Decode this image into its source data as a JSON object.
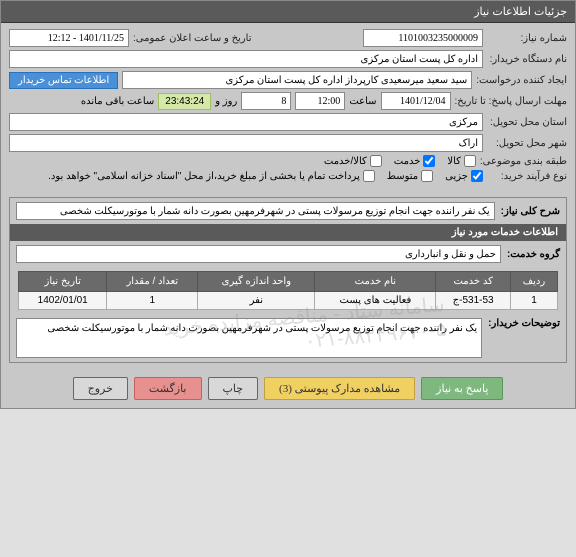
{
  "header": {
    "title": "جزئیات اطلاعات نیاز"
  },
  "form": {
    "need_number_label": "شماره نیاز:",
    "need_number": "1101003235000009",
    "announce_label": "تاریخ و ساعت اعلان عمومی:",
    "announce_value": "1401/11/25 - 12:12",
    "buyer_org_label": "نام دستگاه خریدار:",
    "buyer_org": "اداره کل پست استان مرکزی",
    "creator_label": "ایجاد کننده درخواست:",
    "creator": "سید سعید میرسعیدی کارپرداز اداره کل پست استان مرکزی",
    "contact_btn": "اطلاعات تماس خریدار",
    "deadline_label": "مهلت ارسال پاسخ: تا تاریخ:",
    "deadline_date": "1401/12/04",
    "time_label": "ساعت",
    "deadline_time": "12:00",
    "days_label": "روز و",
    "days_value": "8",
    "remaining_time": "23:43:24",
    "remaining_label": "ساعت باقی مانده",
    "delivery_province_label": "استان محل تحویل:",
    "delivery_province": "مرکزی",
    "delivery_city_label": "شهر محل تحویل:",
    "delivery_city": "اراک",
    "category_label": "طبقه بندی موضوعی:",
    "cat_goods": "کالا",
    "cat_service": "خدمت",
    "cat_goods_service": "کالا/خدمت",
    "process_label": "نوع فرآیند خرید:",
    "proc_small": "جزیی",
    "proc_medium": "متوسط",
    "proc_note": "پرداخت تمام یا بخشی از مبلغ خرید،از محل \"اسناد خزانه اسلامی\" خواهد بود."
  },
  "description": {
    "main_label": "شرح کلی نیاز:",
    "main_text": "یک نفر راننده جهت انجام توزیع مرسولات پستی در شهرفرمهین بصورت دانه شمار با موتورسیکلت شخصی",
    "services_header": "اطلاعات خدمات مورد نیاز",
    "service_group_label": "گروه خدمت:",
    "service_group": "حمل و نقل و انبارداری"
  },
  "table": {
    "headers": {
      "row": "ردیف",
      "code": "کد خدمت",
      "name": "نام خدمت",
      "unit": "واحد اندازه گیری",
      "qty": "تعداد / مقدار",
      "date": "تاریخ نیاز"
    },
    "rows": [
      {
        "row": "1",
        "code": "531-53-ج",
        "name": "فعالیت های پست",
        "unit": "نفر",
        "qty": "1",
        "date": "1402/01/01"
      }
    ]
  },
  "buyer_notes": {
    "label": "توضیحات خریدار:",
    "text": "یک نفر راننده جهت انجام توزیع مرسولات پستی در شهرفرمهین بصورت دانه شمار با موتورسیکلت شخصی"
  },
  "buttons": {
    "respond": "پاسخ به نیاز",
    "attachments": "مشاهده مدارک پیوستی (3)",
    "print": "چاپ",
    "return": "بازگشت",
    "exit": "خروج"
  },
  "watermark": {
    "line1": "سامانه تدارکات الکترونیکی دولت",
    "line2": "سامانه ستاد - مناقصه مزایده خرید",
    "line3": "۰۲۱-۸۸۲۴۹۶۷۰-۵"
  }
}
